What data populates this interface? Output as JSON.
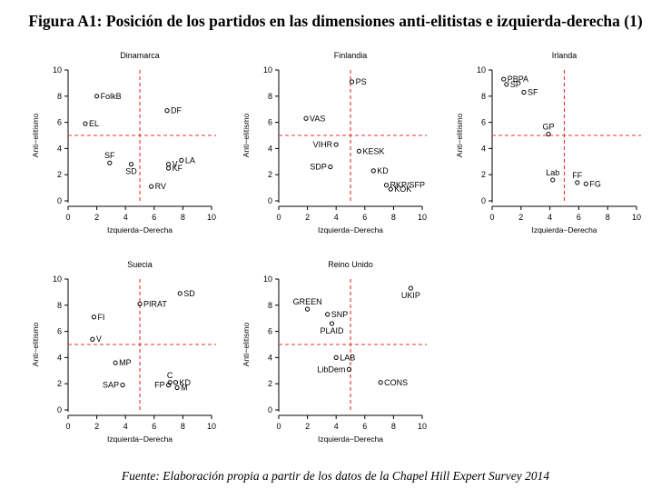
{
  "figure": {
    "title": "Figura A1: Posición de los partidos en las dimensiones anti-elitistas e izquierda-derecha (1)",
    "source": "Fuente: Elaboración propia a partir de los datos de la Chapel Hill Expert Survey 2014"
  },
  "colors": {
    "axes": "#000000",
    "reference_lines": "#e8302a",
    "points": "#000000"
  },
  "chart_data": [
    {
      "type": "scatter",
      "title": "Dinamarca",
      "xlabel": "Izquierda−Derecha",
      "ylabel": "Anti−elitismo",
      "xlim": [
        0,
        10
      ],
      "ylim": [
        0,
        10
      ],
      "xticks": [
        0,
        2,
        4,
        6,
        8,
        10
      ],
      "yticks": [
        0,
        2,
        4,
        6,
        8,
        10
      ],
      "reference_lines": {
        "x": 5,
        "y": 5
      },
      "points": [
        {
          "label": "FolkB",
          "x": 2.0,
          "y": 8.0,
          "label_pos": "right"
        },
        {
          "label": "EL",
          "x": 1.2,
          "y": 5.9,
          "label_pos": "right"
        },
        {
          "label": "DF",
          "x": 6.9,
          "y": 6.9,
          "label_pos": "right"
        },
        {
          "label": "SF",
          "x": 2.9,
          "y": 2.9,
          "label_pos": "above"
        },
        {
          "label": "SD",
          "x": 4.4,
          "y": 2.8,
          "label_pos": "below"
        },
        {
          "label": "V",
          "x": 7.0,
          "y": 2.8,
          "label_pos": "right"
        },
        {
          "label": "KF",
          "x": 7.0,
          "y": 2.5,
          "label_pos": "right"
        },
        {
          "label": "LA",
          "x": 7.9,
          "y": 3.1,
          "label_pos": "right"
        },
        {
          "label": "RV",
          "x": 5.8,
          "y": 1.1,
          "label_pos": "right"
        }
      ]
    },
    {
      "type": "scatter",
      "title": "Finlandia",
      "xlabel": "Izquierda−Derecha",
      "ylabel": "Anti−elitismo",
      "xlim": [
        0,
        10
      ],
      "ylim": [
        0,
        10
      ],
      "xticks": [
        0,
        2,
        4,
        6,
        8,
        10
      ],
      "yticks": [
        0,
        2,
        4,
        6,
        8,
        10
      ],
      "reference_lines": {
        "x": 5,
        "y": 5
      },
      "points": [
        {
          "label": "PS",
          "x": 5.1,
          "y": 9.1,
          "label_pos": "right"
        },
        {
          "label": "VAS",
          "x": 1.9,
          "y": 6.3,
          "label_pos": "right"
        },
        {
          "label": "VIHR",
          "x": 4.0,
          "y": 4.3,
          "label_pos": "left"
        },
        {
          "label": "KESK",
          "x": 5.6,
          "y": 3.8,
          "label_pos": "right"
        },
        {
          "label": "SDP",
          "x": 3.6,
          "y": 2.6,
          "label_pos": "left"
        },
        {
          "label": "KD",
          "x": 6.6,
          "y": 2.3,
          "label_pos": "right"
        },
        {
          "label": "RKP/SFP",
          "x": 7.5,
          "y": 1.2,
          "label_pos": "right"
        },
        {
          "label": "KOK",
          "x": 7.8,
          "y": 0.9,
          "label_pos": "right"
        }
      ]
    },
    {
      "type": "scatter",
      "title": "Irlanda",
      "xlabel": "Izquierda−Derecha",
      "ylabel": "Anti−elitismo",
      "xlim": [
        0,
        10
      ],
      "ylim": [
        0,
        10
      ],
      "xticks": [
        0,
        2,
        4,
        6,
        8,
        10
      ],
      "yticks": [
        0,
        2,
        4,
        6,
        8,
        10
      ],
      "reference_lines": {
        "x": 5,
        "y": 5
      },
      "points": [
        {
          "label": "PBPA",
          "x": 0.8,
          "y": 9.3,
          "label_pos": "right"
        },
        {
          "label": "SP",
          "x": 1.0,
          "y": 8.9,
          "label_pos": "right"
        },
        {
          "label": "SF",
          "x": 2.2,
          "y": 8.3,
          "label_pos": "right"
        },
        {
          "label": "GP",
          "x": 3.9,
          "y": 5.1,
          "label_pos": "above"
        },
        {
          "label": "Lab",
          "x": 4.2,
          "y": 1.6,
          "label_pos": "above"
        },
        {
          "label": "FF",
          "x": 5.9,
          "y": 1.4,
          "label_pos": "above"
        },
        {
          "label": "FG",
          "x": 6.5,
          "y": 1.3,
          "label_pos": "right"
        }
      ]
    },
    {
      "type": "scatter",
      "title": "Suecia",
      "xlabel": "Izquierda−Derecha",
      "ylabel": "Anti−elitismo",
      "xlim": [
        0,
        10
      ],
      "ylim": [
        0,
        10
      ],
      "xticks": [
        0,
        2,
        4,
        6,
        8,
        10
      ],
      "yticks": [
        0,
        2,
        4,
        6,
        8,
        10
      ],
      "reference_lines": {
        "x": 5,
        "y": 5
      },
      "points": [
        {
          "label": "SD",
          "x": 7.8,
          "y": 8.9,
          "label_pos": "right"
        },
        {
          "label": "PIRAT",
          "x": 5.0,
          "y": 8.1,
          "label_pos": "right"
        },
        {
          "label": "FI",
          "x": 1.8,
          "y": 7.1,
          "label_pos": "right"
        },
        {
          "label": "V",
          "x": 1.7,
          "y": 5.4,
          "label_pos": "right"
        },
        {
          "label": "MP",
          "x": 3.3,
          "y": 3.6,
          "label_pos": "right"
        },
        {
          "label": "SAP",
          "x": 3.8,
          "y": 1.9,
          "label_pos": "left"
        },
        {
          "label": "C",
          "x": 7.1,
          "y": 2.1,
          "label_pos": "above"
        },
        {
          "label": "KD",
          "x": 7.5,
          "y": 2.1,
          "label_pos": "right"
        },
        {
          "label": "FP",
          "x": 7.0,
          "y": 1.9,
          "label_pos": "left"
        },
        {
          "label": "M",
          "x": 7.6,
          "y": 1.7,
          "label_pos": "right"
        }
      ]
    },
    {
      "type": "scatter",
      "title": "Reino Unido",
      "xlabel": "Izquierda−Derecha",
      "ylabel": "Anti−elitismo",
      "xlim": [
        0,
        10
      ],
      "ylim": [
        0,
        10
      ],
      "xticks": [
        0,
        2,
        4,
        6,
        8,
        10
      ],
      "yticks": [
        0,
        2,
        4,
        6,
        8,
        10
      ],
      "reference_lines": {
        "x": 5,
        "y": 5
      },
      "points": [
        {
          "label": "UKIP",
          "x": 9.2,
          "y": 9.3,
          "label_pos": "below"
        },
        {
          "label": "GREEN",
          "x": 2.0,
          "y": 7.7,
          "label_pos": "above"
        },
        {
          "label": "SNP",
          "x": 3.4,
          "y": 7.3,
          "label_pos": "right"
        },
        {
          "label": "PLAID",
          "x": 3.7,
          "y": 6.6,
          "label_pos": "below"
        },
        {
          "label": "LAB",
          "x": 4.0,
          "y": 4.0,
          "label_pos": "right"
        },
        {
          "label": "LibDem",
          "x": 4.9,
          "y": 3.1,
          "label_pos": "left"
        },
        {
          "label": "CONS",
          "x": 7.1,
          "y": 2.1,
          "label_pos": "right"
        }
      ]
    }
  ]
}
